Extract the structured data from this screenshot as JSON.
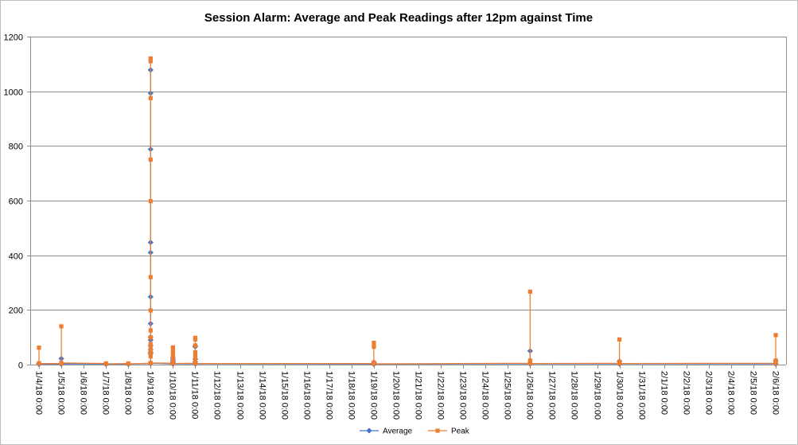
{
  "chart_data": {
    "type": "line",
    "title": "Session Alarm: Average and Peak Readings after 12pm against Time",
    "x_ticks": [
      "1/4/18 0:00",
      "1/5/18 0:00",
      "1/6/18 0:00",
      "1/7/18 0:00",
      "1/8/18 0:00",
      "1/9/18 0:00",
      "1/10/18 0:00",
      "1/11/18 0:00",
      "1/12/18 0:00",
      "1/13/18 0:00",
      "1/14/18 0:00",
      "1/15/18 0:00",
      "1/16/18 0:00",
      "1/17/18 0:00",
      "1/18/18 0:00",
      "1/19/18 0:00",
      "1/20/18 0:00",
      "1/21/18 0:00",
      "1/22/18 0:00",
      "1/23/18 0:00",
      "1/24/18 0:00",
      "1/25/18 0:00",
      "1/26/18 0:00",
      "1/27/18 0:00",
      "1/28/18 0:00",
      "1/29/18 0:00",
      "1/30/18 0:00",
      "1/31/18 0:00",
      "2/1/18 0:00",
      "2/2/18 0:00",
      "2/3/18 0:00",
      "2/4/18 0:00",
      "2/5/18 0:00",
      "2/6/18 0:00"
    ],
    "ylim": [
      0,
      1200
    ],
    "y_ticks": [
      0,
      200,
      400,
      600,
      800,
      1000,
      1200
    ],
    "grid": "horizontal",
    "legend": "bottom",
    "series": [
      {
        "name": "Average",
        "color": "#4472C4",
        "points": [
          {
            "x": "1/4/18 0:00",
            "y": [
              3,
              4,
              2
            ]
          },
          {
            "x": "1/5/18 0:00",
            "y": [
              2,
              22,
              3
            ]
          },
          {
            "x": "1/7/18 0:00",
            "y": [
              2,
              2
            ]
          },
          {
            "x": "1/8/18 0:00",
            "y": [
              2,
              2
            ]
          },
          {
            "x": "1/9/18 0:00",
            "y": [
              4,
              40,
              45,
              55,
              70,
              90,
              100,
              150,
              248,
              410,
              447,
              788,
              993,
              1078,
              5
            ]
          },
          {
            "x": "1/10/18 0:00",
            "y": [
              3,
              8,
              12,
              18,
              25,
              3
            ]
          },
          {
            "x": "1/11/18 0:00",
            "y": [
              3,
              10,
              20,
              65,
              68,
              3
            ]
          },
          {
            "x": "1/19/18 0:00",
            "y": [
              2,
              8,
              5,
              2
            ]
          },
          {
            "x": "1/26/18 0:00",
            "y": [
              3,
              50,
              3
            ]
          },
          {
            "x": "1/30/18 0:00",
            "y": [
              3,
              12,
              3
            ]
          },
          {
            "x": "2/6/18 0:00",
            "y": [
              3,
              14,
              3
            ]
          }
        ]
      },
      {
        "name": "Peak",
        "color": "#ED7D31",
        "points": [
          {
            "x": "1/4/18 0:00",
            "y": [
              5,
              62,
              4
            ]
          },
          {
            "x": "1/5/18 0:00",
            "y": [
              4,
              140,
              6
            ]
          },
          {
            "x": "1/7/18 0:00",
            "y": [
              4,
              3
            ]
          },
          {
            "x": "1/8/18 0:00",
            "y": [
              4,
              3
            ]
          },
          {
            "x": "1/9/18 0:00",
            "y": [
              5,
              30,
              40,
              50,
              60,
              75,
              100,
              125,
              198,
              320,
              598,
              750,
              975,
              1110,
              1120,
              6
            ]
          },
          {
            "x": "1/10/18 0:00",
            "y": [
              5,
              15,
              25,
              35,
              45,
              55,
              63,
              4
            ]
          },
          {
            "x": "1/11/18 0:00",
            "y": [
              5,
              15,
              30,
              45,
              92,
              98,
              70,
              4
            ]
          },
          {
            "x": "1/19/18 0:00",
            "y": [
              4,
              65,
              80,
              8,
              3
            ]
          },
          {
            "x": "1/26/18 0:00",
            "y": [
              5,
              15,
              267,
              4
            ]
          },
          {
            "x": "1/30/18 0:00",
            "y": [
              5,
              10,
              92,
              4
            ]
          },
          {
            "x": "2/6/18 0:00",
            "y": [
              5,
              15,
              108,
              4
            ]
          }
        ]
      }
    ]
  }
}
